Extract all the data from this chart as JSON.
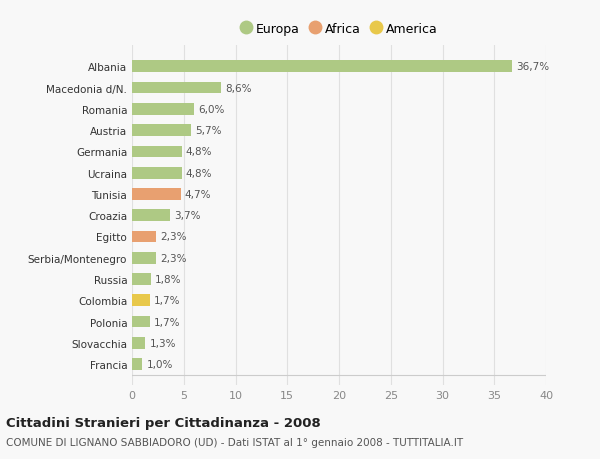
{
  "countries": [
    "Francia",
    "Slovacchia",
    "Polonia",
    "Colombia",
    "Russia",
    "Serbia/Montenegro",
    "Egitto",
    "Croazia",
    "Tunisia",
    "Ucraina",
    "Germania",
    "Austria",
    "Romania",
    "Macedonia d/N.",
    "Albania"
  ],
  "values": [
    1.0,
    1.3,
    1.7,
    1.7,
    1.8,
    2.3,
    2.3,
    3.7,
    4.7,
    4.8,
    4.8,
    5.7,
    6.0,
    8.6,
    36.7
  ],
  "labels": [
    "1,0%",
    "1,3%",
    "1,7%",
    "1,7%",
    "1,8%",
    "2,3%",
    "2,3%",
    "3,7%",
    "4,7%",
    "4,8%",
    "4,8%",
    "5,7%",
    "6,0%",
    "8,6%",
    "36,7%"
  ],
  "colors": [
    "#aec984",
    "#aec984",
    "#aec984",
    "#e8c84a",
    "#aec984",
    "#aec984",
    "#e8a070",
    "#aec984",
    "#e8a070",
    "#aec984",
    "#aec984",
    "#aec984",
    "#aec984",
    "#aec984",
    "#aec984"
  ],
  "legend_labels": [
    "Europa",
    "Africa",
    "America"
  ],
  "legend_colors": [
    "#aec984",
    "#e8a070",
    "#e8c84a"
  ],
  "title1": "Cittadini Stranieri per Cittadinanza - 2008",
  "title2": "COMUNE DI LIGNANO SABBIADORO (UD) - Dati ISTAT al 1° gennaio 2008 - TUTTITALIA.IT",
  "xlim": [
    0,
    40
  ],
  "xticks": [
    0,
    5,
    10,
    15,
    20,
    25,
    30,
    35,
    40
  ],
  "bg_color": "#f8f8f8",
  "grid_color": "#e0e0e0",
  "bar_height": 0.55
}
